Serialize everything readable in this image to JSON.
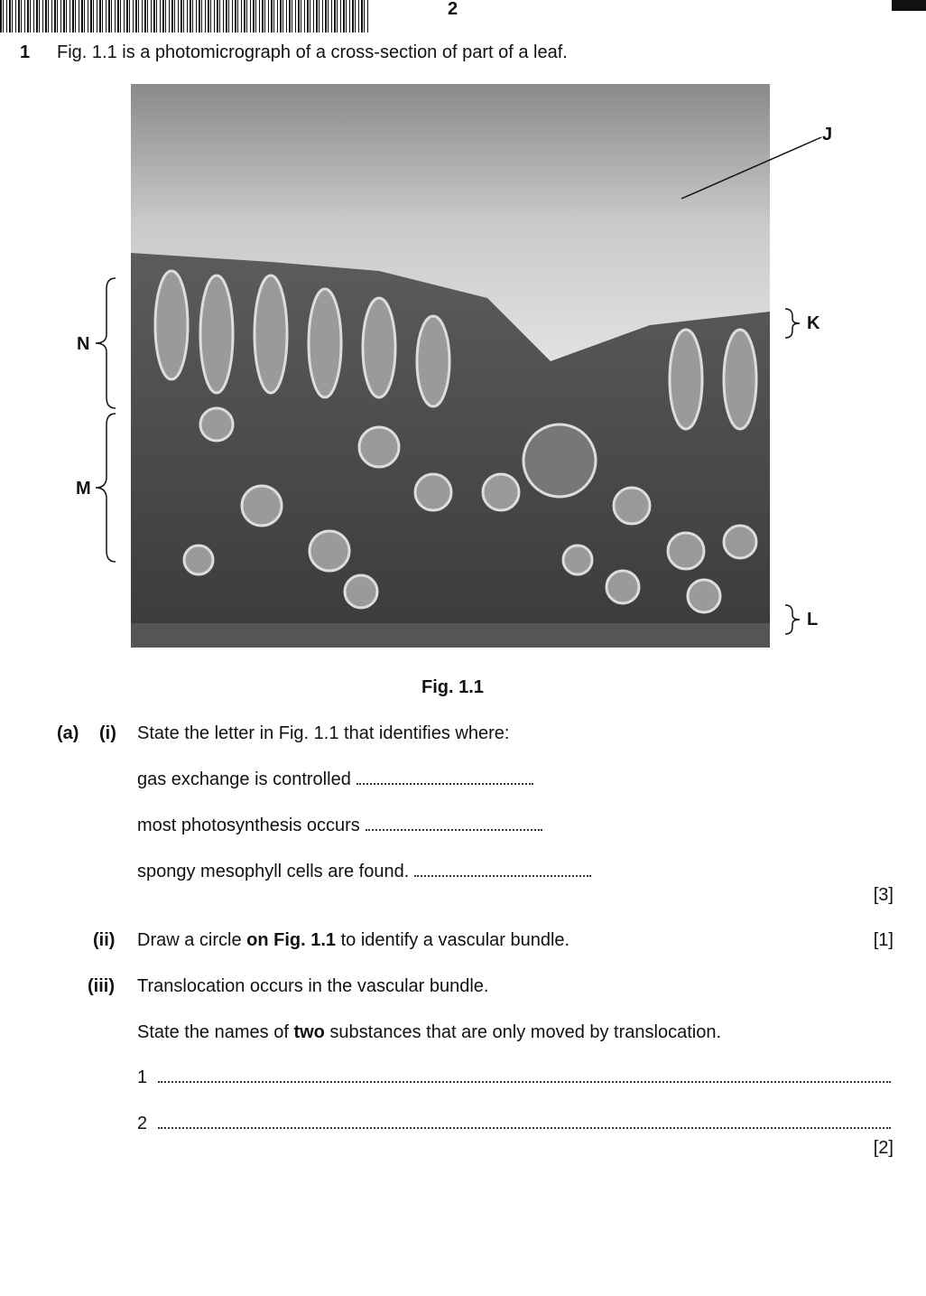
{
  "header": {
    "page_number": "2"
  },
  "question": {
    "number": "1",
    "intro": "Fig. 1.1 is a photomicrograph of a cross-section of part of a leaf."
  },
  "figure": {
    "labels": [
      "J",
      "K",
      "L",
      "N",
      "M"
    ],
    "caption": "Fig. 1.1"
  },
  "part_a": {
    "label": "(a)",
    "i": {
      "label": "(i)",
      "text": "State the letter in Fig. 1.1 that identifies where:",
      "items": [
        "gas exchange is controlled",
        "most photosynthesis occurs",
        "spongy mesophyll cells are found."
      ],
      "marks": "[3]"
    },
    "ii": {
      "label": "(ii)",
      "text": [
        "Draw a circle ",
        "on Fig. 1.1",
        " to identify a vascular bundle."
      ],
      "marks": "[1]"
    },
    "iii": {
      "label": "(iii)",
      "text": "Translocation occurs in the vascular bundle.",
      "question": [
        "State the names of ",
        "two",
        " substances that are only moved by translocation."
      ],
      "answers": [
        "1",
        "2"
      ],
      "marks": "[2]"
    }
  }
}
